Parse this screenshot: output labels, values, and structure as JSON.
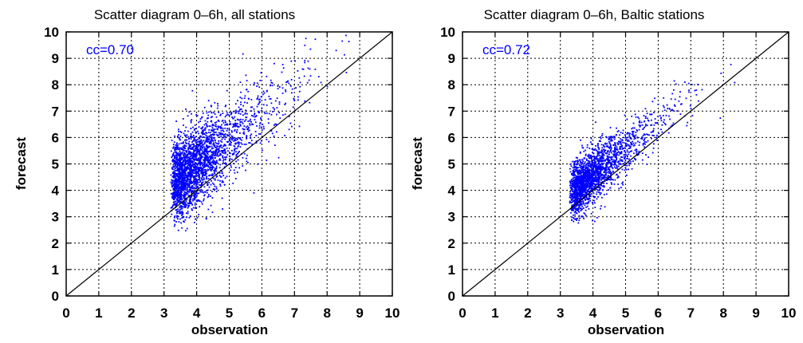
{
  "chart_data": [
    {
      "type": "scatter",
      "title": "Scatter diagram 0–6h, all stations",
      "xlabel": "observation",
      "ylabel": "forecast",
      "xlim": [
        0,
        10
      ],
      "ylim": [
        0,
        10
      ],
      "xticks": [
        "0",
        "1",
        "2",
        "3",
        "4",
        "5",
        "6",
        "7",
        "8",
        "9",
        "10"
      ],
      "yticks": [
        "0",
        "1",
        "2",
        "3",
        "4",
        "5",
        "6",
        "7",
        "8",
        "9",
        "10"
      ],
      "grid": true,
      "annotation": "cc=0.70",
      "identity_line": [
        [
          0,
          0
        ],
        [
          10,
          10
        ]
      ],
      "point_color": "#0000ff",
      "cloud": {
        "n": 2600,
        "x_range": [
          2.3,
          8.8
        ],
        "y_range": [
          2.2,
          9.9
        ],
        "x_center": 4.3,
        "x_spread": 1.0,
        "slope": 0.95,
        "intercept": 1.15,
        "noise": 0.75
      }
    },
    {
      "type": "scatter",
      "title": "Scatter diagram 0–6h, Baltic stations",
      "xlabel": "observation",
      "ylabel": "forecast",
      "xlim": [
        0,
        10
      ],
      "ylim": [
        0,
        10
      ],
      "xticks": [
        "0",
        "1",
        "2",
        "3",
        "4",
        "5",
        "6",
        "7",
        "8",
        "9",
        "10"
      ],
      "yticks": [
        "0",
        "1",
        "2",
        "3",
        "4",
        "5",
        "6",
        "7",
        "8",
        "9",
        "10"
      ],
      "grid": true,
      "annotation": "cc=0.72",
      "identity_line": [
        [
          0,
          0
        ],
        [
          10,
          10
        ]
      ],
      "point_color": "#0000ff",
      "cloud": {
        "n": 2100,
        "x_range": [
          2.6,
          8.8
        ],
        "y_range": [
          2.4,
          9.3
        ],
        "x_center": 4.1,
        "x_spread": 0.85,
        "slope": 1.0,
        "intercept": 0.55,
        "noise": 0.5
      }
    }
  ]
}
